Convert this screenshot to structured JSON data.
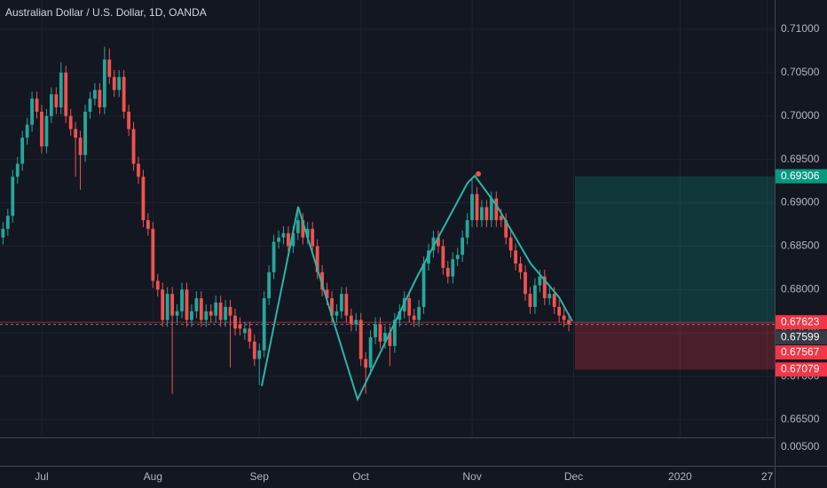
{
  "chart_data": {
    "type": "candlestick",
    "title": "Australian Dollar / U.S. Dollar, 1D, OANDA",
    "up_color": "#26a69a",
    "down_color": "#ef5350",
    "grid": true,
    "xlim": [
      -0.62,
      159.56
    ],
    "ylim": [
      0.66296,
      0.71337
    ],
    "xticks": [
      {
        "value": 8,
        "label": "Jul"
      },
      {
        "value": 31,
        "label": "Aug"
      },
      {
        "value": 53,
        "label": "Sep"
      },
      {
        "value": 74,
        "label": "Oct"
      },
      {
        "value": 97,
        "label": "Nov"
      },
      {
        "value": 118,
        "label": "Dec"
      },
      {
        "value": 140,
        "label": "2020"
      },
      {
        "value": 158,
        "label": "27"
      }
    ],
    "yticks": [
      {
        "value": 0.665,
        "label": "0.66500"
      },
      {
        "value": 0.67,
        "label": "0.67000"
      },
      {
        "value": 0.675,
        "label": "0.67500"
      },
      {
        "value": 0.68,
        "label": "0.68000"
      },
      {
        "value": 0.685,
        "label": "0.68500"
      },
      {
        "value": 0.69,
        "label": "0.69000"
      },
      {
        "value": 0.695,
        "label": "0.69500"
      },
      {
        "value": 0.7,
        "label": "0.70000"
      },
      {
        "value": 0.705,
        "label": "0.70500"
      },
      {
        "value": 0.71,
        "label": "0.71000"
      }
    ],
    "lower_pane_ticks": [
      {
        "value": 0.005,
        "label": "0.00500"
      }
    ],
    "price_labels": [
      {
        "value": 0.69306,
        "label": "0.69306",
        "color": "#089981"
      },
      {
        "value": 0.67623,
        "label": "0.67623",
        "color": "#f23645"
      },
      {
        "value": 0.67599,
        "label": "0.67599",
        "color": "#363a45"
      },
      {
        "value": 0.67567,
        "label": "0.67567",
        "color": "#f23645"
      },
      {
        "value": 0.67079,
        "label": "0.67079",
        "color": "#f23645"
      }
    ],
    "candles": [
      [
        0.686,
        0.6878,
        0.6852,
        0.687
      ],
      [
        0.687,
        0.6893,
        0.6862,
        0.6885
      ],
      [
        0.6885,
        0.6938,
        0.6877,
        0.693
      ],
      [
        0.693,
        0.6953,
        0.6922,
        0.6945
      ],
      [
        0.6945,
        0.6983,
        0.6937,
        0.6975
      ],
      [
        0.6975,
        0.6998,
        0.6967,
        0.699
      ],
      [
        0.699,
        0.7028,
        0.6982,
        0.702
      ],
      [
        0.702,
        0.7028,
        0.6997,
        0.7005
      ],
      [
        0.7005,
        0.7013,
        0.6957,
        0.6965
      ],
      [
        0.6965,
        0.7008,
        0.6957,
        0.7
      ],
      [
        0.7,
        0.7033,
        0.6992,
        0.7025
      ],
      [
        0.7025,
        0.7033,
        0.7002,
        0.701
      ],
      [
        0.701,
        0.7062,
        0.7002,
        0.705
      ],
      [
        0.705,
        0.7058,
        0.6992,
        0.7
      ],
      [
        0.7,
        0.7008,
        0.6977,
        0.6985
      ],
      [
        0.6985,
        0.6993,
        0.693,
        0.6975
      ],
      [
        0.6975,
        0.6983,
        0.6915,
        0.6955
      ],
      [
        0.6955,
        0.7013,
        0.6947,
        0.7005
      ],
      [
        0.7005,
        0.7028,
        0.6997,
        0.702
      ],
      [
        0.702,
        0.7038,
        0.7012,
        0.703
      ],
      [
        0.703,
        0.7038,
        0.7002,
        0.701
      ],
      [
        0.701,
        0.708,
        0.7002,
        0.7065
      ],
      [
        0.7065,
        0.7078,
        0.7037,
        0.7045
      ],
      [
        0.7045,
        0.7053,
        0.7022,
        0.703
      ],
      [
        0.703,
        0.7053,
        0.7022,
        0.7045
      ],
      [
        0.7045,
        0.7053,
        0.6997,
        0.7005
      ],
      [
        0.7005,
        0.7013,
        0.6977,
        0.6985
      ],
      [
        0.6985,
        0.6993,
        0.6937,
        0.6945
      ],
      [
        0.6945,
        0.6953,
        0.6922,
        0.693
      ],
      [
        0.693,
        0.6938,
        0.6872,
        0.688
      ],
      [
        0.688,
        0.6888,
        0.6862,
        0.687
      ],
      [
        0.687,
        0.6878,
        0.6802,
        0.681
      ],
      [
        0.681,
        0.6818,
        0.6792,
        0.68
      ],
      [
        0.68,
        0.6808,
        0.6757,
        0.6765
      ],
      [
        0.6765,
        0.6803,
        0.6757,
        0.6795
      ],
      [
        0.6795,
        0.6803,
        0.668,
        0.677
      ],
      [
        0.677,
        0.6783,
        0.6762,
        0.6775
      ],
      [
        0.6775,
        0.6808,
        0.6767,
        0.68
      ],
      [
        0.68,
        0.6808,
        0.6757,
        0.6765
      ],
      [
        0.6765,
        0.6783,
        0.6757,
        0.6775
      ],
      [
        0.6775,
        0.6798,
        0.6767,
        0.679
      ],
      [
        0.679,
        0.6798,
        0.6757,
        0.6765
      ],
      [
        0.6765,
        0.6783,
        0.6757,
        0.6775
      ],
      [
        0.6775,
        0.6783,
        0.6762,
        0.677
      ],
      [
        0.677,
        0.6793,
        0.6762,
        0.6785
      ],
      [
        0.6785,
        0.6793,
        0.6757,
        0.6765
      ],
      [
        0.6765,
        0.6788,
        0.6757,
        0.678
      ],
      [
        0.678,
        0.6788,
        0.671,
        0.677
      ],
      [
        0.677,
        0.6778,
        0.6747,
        0.6755
      ],
      [
        0.676,
        0.6768,
        0.6747,
        0.6755
      ],
      [
        0.675,
        0.6763,
        0.6742,
        0.6755
      ],
      [
        0.6755,
        0.6763,
        0.6732,
        0.674
      ],
      [
        0.674,
        0.6748,
        0.6712,
        0.672
      ],
      [
        0.672,
        0.6738,
        0.669,
        0.673
      ],
      [
        0.673,
        0.6798,
        0.6722,
        0.679
      ],
      [
        0.679,
        0.6828,
        0.6782,
        0.682
      ],
      [
        0.682,
        0.6863,
        0.6812,
        0.6855
      ],
      [
        0.6855,
        0.6868,
        0.6847,
        0.686
      ],
      [
        0.686,
        0.6873,
        0.6852,
        0.6865
      ],
      [
        0.6865,
        0.6873,
        0.6842,
        0.685
      ],
      [
        0.685,
        0.6873,
        0.6842,
        0.6865
      ],
      [
        0.6865,
        0.6895,
        0.6857,
        0.688
      ],
      [
        0.688,
        0.6888,
        0.6852,
        0.686
      ],
      [
        0.686,
        0.6878,
        0.6852,
        0.687
      ],
      [
        0.687,
        0.6878,
        0.6842,
        0.685
      ],
      [
        0.685,
        0.6858,
        0.6812,
        0.682
      ],
      [
        0.682,
        0.6828,
        0.6792,
        0.68
      ],
      [
        0.68,
        0.6808,
        0.6782,
        0.679
      ],
      [
        0.679,
        0.6798,
        0.6762,
        0.677
      ],
      [
        0.677,
        0.6783,
        0.6762,
        0.6775
      ],
      [
        0.6775,
        0.6803,
        0.6767,
        0.6795
      ],
      [
        0.6795,
        0.6803,
        0.6762,
        0.677
      ],
      [
        0.677,
        0.6778,
        0.6752,
        0.676
      ],
      [
        0.676,
        0.6773,
        0.6752,
        0.6765
      ],
      [
        0.6765,
        0.6773,
        0.6712,
        0.672
      ],
      [
        0.672,
        0.6728,
        0.668,
        0.671
      ],
      [
        0.671,
        0.6753,
        0.6702,
        0.6745
      ],
      [
        0.6745,
        0.6768,
        0.6737,
        0.676
      ],
      [
        0.676,
        0.6768,
        0.6732,
        0.674
      ],
      [
        0.674,
        0.6758,
        0.6732,
        0.675
      ],
      [
        0.675,
        0.6758,
        0.6712,
        0.6735
      ],
      [
        0.6735,
        0.6773,
        0.6727,
        0.6765
      ],
      [
        0.6765,
        0.6783,
        0.6757,
        0.6775
      ],
      [
        0.6775,
        0.6798,
        0.6767,
        0.679
      ],
      [
        0.679,
        0.6798,
        0.6762,
        0.677
      ],
      [
        0.677,
        0.6778,
        0.6757,
        0.6765
      ],
      [
        0.6765,
        0.6788,
        0.6757,
        0.678
      ],
      [
        0.678,
        0.6838,
        0.6772,
        0.683
      ],
      [
        0.683,
        0.6853,
        0.6822,
        0.6845
      ],
      [
        0.6845,
        0.6868,
        0.6837,
        0.686
      ],
      [
        0.686,
        0.6868,
        0.6842,
        0.685
      ],
      [
        0.685,
        0.6858,
        0.6817,
        0.6825
      ],
      [
        0.6825,
        0.6833,
        0.6807,
        0.6815
      ],
      [
        0.6815,
        0.6843,
        0.6807,
        0.6835
      ],
      [
        0.6835,
        0.6848,
        0.6827,
        0.684
      ],
      [
        0.684,
        0.6868,
        0.6832,
        0.686
      ],
      [
        0.686,
        0.6888,
        0.6852,
        0.688
      ],
      [
        0.688,
        0.6928,
        0.6872,
        0.691
      ],
      [
        0.691,
        0.6918,
        0.6872,
        0.688
      ],
      [
        0.688,
        0.6903,
        0.6872,
        0.6895
      ],
      [
        0.6895,
        0.6903,
        0.6872,
        0.688
      ],
      [
        0.688,
        0.6913,
        0.6872,
        0.6905
      ],
      [
        0.6905,
        0.6913,
        0.6872,
        0.688
      ],
      [
        0.6885,
        0.6893,
        0.6872,
        0.688
      ],
      [
        0.688,
        0.6888,
        0.6852,
        0.686
      ],
      [
        0.686,
        0.6868,
        0.6837,
        0.6845
      ],
      [
        0.6845,
        0.6853,
        0.6822,
        0.683
      ],
      [
        0.683,
        0.6838,
        0.6812,
        0.682
      ],
      [
        0.682,
        0.6828,
        0.6787,
        0.6795
      ],
      [
        0.6795,
        0.6803,
        0.6772,
        0.678
      ],
      [
        0.678,
        0.6813,
        0.6772,
        0.6805
      ],
      [
        0.6805,
        0.6823,
        0.6797,
        0.6815
      ],
      [
        0.6815,
        0.6823,
        0.6782,
        0.679
      ],
      [
        0.679,
        0.6803,
        0.6782,
        0.6795
      ],
      [
        0.6795,
        0.6803,
        0.6772,
        0.678
      ],
      [
        0.678,
        0.6788,
        0.6762,
        0.677
      ],
      [
        0.677,
        0.6778,
        0.6757,
        0.6765
      ],
      [
        0.6765,
        0.6773,
        0.6752,
        0.676
      ]
    ]
  }
}
